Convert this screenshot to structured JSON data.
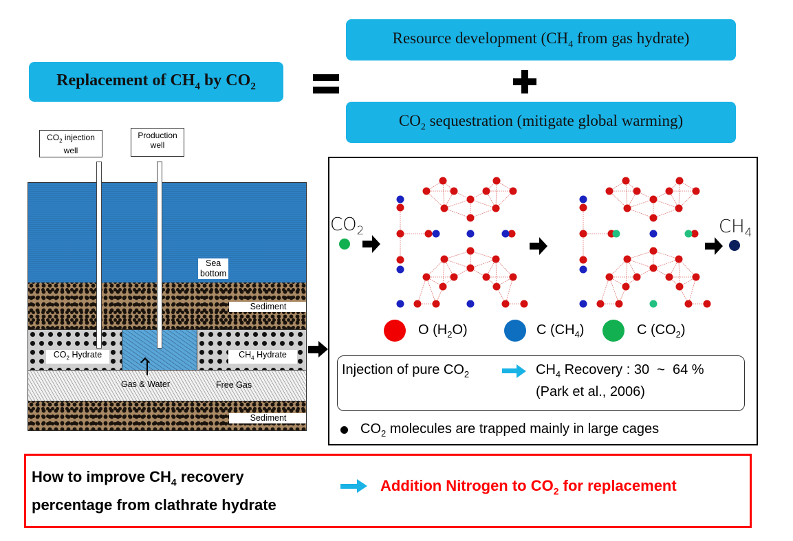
{
  "header": {
    "replacement": {
      "pre": "Replacement of CH",
      "sub1": "4",
      "mid": " by CO",
      "sub2": "2"
    },
    "resource": {
      "pre": "Resource development (CH",
      "sub": "4",
      "post": " from gas hydrate)"
    },
    "sequestration": {
      "pre": "CO",
      "sub": "2",
      "post": " sequestration (mitigate global warming)"
    },
    "equals_icon": "equals-sign",
    "plus_icon": "plus-sign"
  },
  "well_diagram": {
    "co2_well": {
      "pre": "CO",
      "sub": "2",
      "post": " injection",
      "line2": "well"
    },
    "production_well": {
      "line1": "Production",
      "line2": "well"
    },
    "sea_bottom": {
      "line1": "Sea",
      "line2": "bottom"
    },
    "sediment_top": "Sediment",
    "co2_hydrate": {
      "pre": "CO",
      "sub": "2",
      "post": " Hydrate"
    },
    "ch4_hydrate": {
      "pre": "CH",
      "sub": "4",
      "post": " Hydrate"
    },
    "gas_water": "Gas & Water",
    "free_gas": "Free Gas",
    "sediment_bottom": "Sediment"
  },
  "mechanism": {
    "co2_label": {
      "pre": "CO",
      "sub": "2"
    },
    "ch4_label": {
      "pre": "CH",
      "sub": "4"
    },
    "legend": [
      {
        "pre": "O (H",
        "sub": "2",
        "post": "O)",
        "color": "#f00000"
      },
      {
        "pre": "C (CH",
        "sub": "4",
        "post": ")",
        "color": "#0e6fc0"
      },
      {
        "pre": "C (CO",
        "sub": "2",
        "post": ")",
        "color": "#12b050"
      }
    ],
    "injection": {
      "pre": "Injection of pure CO",
      "sub": "2"
    },
    "recovery": {
      "pre": "CH",
      "sub": "4",
      "post": " Recovery : 30  ~  64 %"
    },
    "citation": "(Park et al., 2006)",
    "bullet": {
      "pre": "CO",
      "sub": "2",
      "post": " molecules are trapped mainly in large cages"
    }
  },
  "conclusion": {
    "left_line1": {
      "pre": "How to improve CH",
      "sub": "4",
      "post": " recovery"
    },
    "left_line2": "percentage from clathrate hydrate",
    "right": {
      "pre": "Addition Nitrogen to CO",
      "sub": "2",
      "post": " for replacement"
    }
  },
  "colors": {
    "accent_cyan": "#1ab3e6",
    "highlight_red": "#ff0000",
    "oxygen": "#d41010",
    "methane_c": "#1a22c0",
    "co2_c": "#22c080",
    "ch4_dot": "#0b1f5c"
  }
}
